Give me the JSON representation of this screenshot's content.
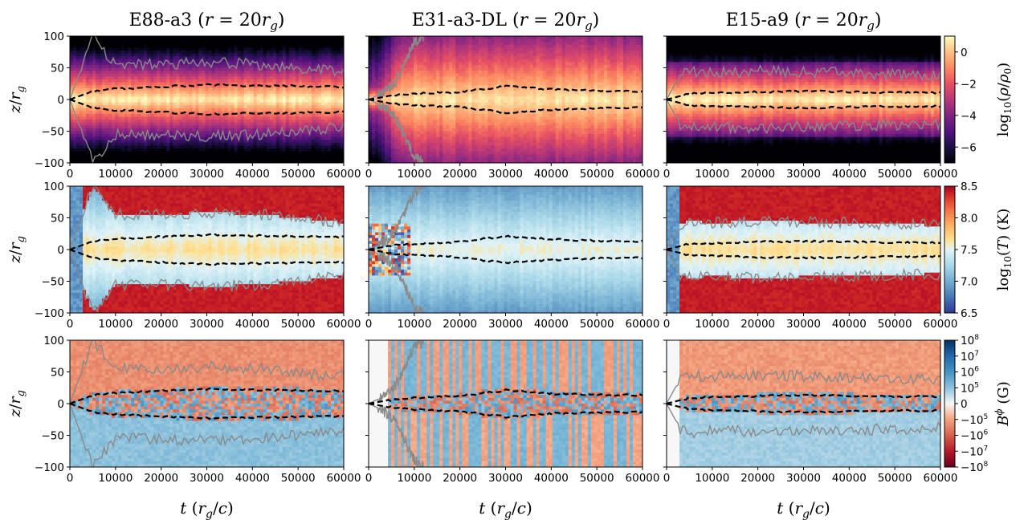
{
  "chart_data": {
    "type": "heatmap",
    "layout": "3x3 grid of time-height heatmaps",
    "columns": [
      "E88-a3 (r = 20r_g)",
      "E31-a3-DL (r = 20r_g)",
      "E15-a9 (r = 20r_g)"
    ],
    "column_titles": [
      {
        "name": "E88-a3",
        "suffix": " (r = 20r_g)"
      },
      {
        "name": "E31-a3-DL",
        "suffix": " (r = 20r_g)"
      },
      {
        "name": "E15-a9",
        "suffix": " (r = 20r_g)"
      }
    ],
    "xlabel": "t (r_g/c)",
    "ylabel": "z/r_g",
    "xlim": [
      0,
      60000
    ],
    "ylim": [
      -100,
      100
    ],
    "xticks": [
      0,
      10000,
      20000,
      30000,
      40000,
      50000,
      60000
    ],
    "yticks": [
      100,
      50,
      0,
      -50,
      -100
    ],
    "xtick_labels": [
      "0",
      "10000",
      "20000",
      "30000",
      "40000",
      "50000",
      "60000"
    ],
    "ytick_labels": [
      "100",
      "50",
      "0",
      "−50",
      "−100"
    ],
    "rows": [
      {
        "quantity": "log10(rho/rho_0)",
        "colorbar_label": "log10(ρ/ρ0)",
        "colormap": "magma",
        "clim": [
          -7,
          1
        ],
        "colorbar_ticks": [
          0,
          -2,
          -4,
          -6
        ],
        "colorbar_tick_labels": [
          "0",
          "−2",
          "−4",
          "−6"
        ]
      },
      {
        "quantity": "log10(T) (K)",
        "colorbar_label": "log10(T) (K)",
        "colormap": "RdYlBu_r",
        "clim": [
          6.5,
          8.5
        ],
        "colorbar_ticks": [
          8.5,
          8.0,
          7.5,
          7.0,
          6.5
        ],
        "colorbar_tick_labels": [
          "8.5",
          "8.0",
          "7.5",
          "7.0",
          "6.5"
        ]
      },
      {
        "quantity": "B^phi (G)",
        "colorbar_label": "Bϕ (G)",
        "colormap": "RdBu (symlog)",
        "clim": [
          -100000000.0,
          100000000.0
        ],
        "colorbar_tick_labels": [
          {
            "sign": "",
            "exp": "8"
          },
          {
            "sign": "",
            "exp": "7"
          },
          {
            "sign": "",
            "exp": "6"
          },
          {
            "sign": "",
            "exp": "5"
          },
          {
            "sign": "",
            "exp": ""
          },
          {
            "sign": "−",
            "exp": "5"
          },
          {
            "sign": "−",
            "exp": "6"
          },
          {
            "sign": "−",
            "exp": "7"
          },
          {
            "sign": "−",
            "exp": "8"
          }
        ]
      }
    ],
    "overlays": {
      "dashed_black_disk_scale_height": [
        {
          "simulation": "E88-a3",
          "t": [
            0,
            5000,
            10000,
            20000,
            30000,
            40000,
            50000,
            60000
          ],
          "z_upper": [
            0,
            13,
            17,
            20,
            23,
            22,
            21,
            20
          ]
        },
        {
          "simulation": "E31-a3-DL",
          "t": [
            0,
            5000,
            10000,
            20000,
            30000,
            40000,
            50000,
            60000
          ],
          "z_upper": [
            0,
            6,
            9,
            12,
            21,
            16,
            14,
            13
          ]
        },
        {
          "simulation": "E15-a9",
          "t": [
            0,
            5000,
            10000,
            20000,
            30000,
            40000,
            50000,
            60000
          ],
          "z_upper": [
            0,
            9,
            10,
            12,
            13,
            12,
            11,
            11
          ]
        }
      ],
      "gray_solid_contour": [
        {
          "simulation": "E88-a3",
          "t": [
            0,
            5000,
            10000,
            20000,
            30000,
            40000,
            50000,
            60000
          ],
          "z_upper": [
            0,
            100,
            55,
            55,
            58,
            56,
            50,
            42
          ]
        },
        {
          "simulation": "E31-a3-DL",
          "t": [
            0,
            3000,
            6000,
            8000,
            10000,
            12000
          ],
          "z_upper": [
            0,
            10,
            30,
            60,
            90,
            100
          ]
        },
        {
          "simulation": "E15-a9",
          "t": [
            0,
            3000,
            5000,
            10000,
            20000,
            30000,
            40000,
            50000,
            60000
          ],
          "z_upper": [
            0,
            40,
            45,
            42,
            45,
            43,
            42,
            40,
            38
          ]
        }
      ]
    }
  }
}
